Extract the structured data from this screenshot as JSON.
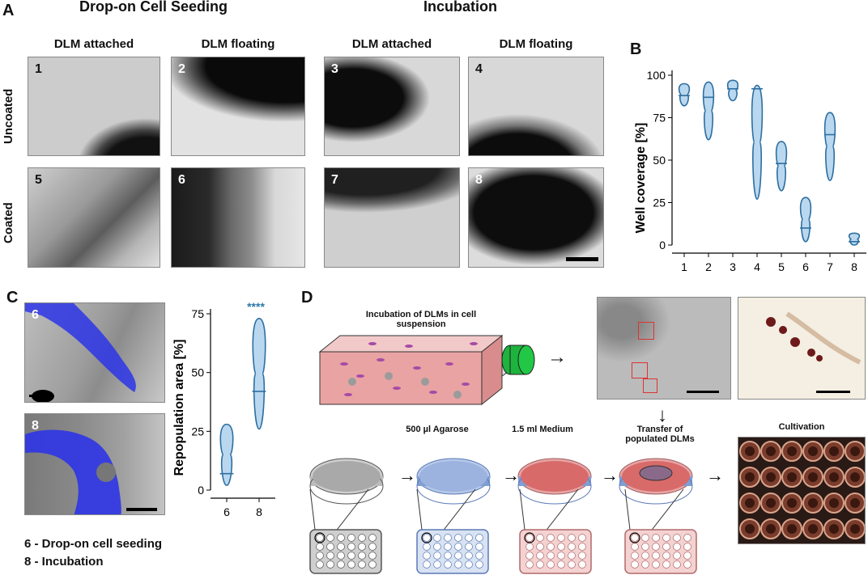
{
  "panelA": {
    "label": "A",
    "header_left": "Drop-on Cell Seeding",
    "header_right": "Incubation",
    "col_titles": [
      "DLM attached",
      "DLM floating",
      "DLM attached",
      "DLM floating"
    ],
    "row_labels": [
      "Uncoated",
      "Coated"
    ],
    "image_numbers": [
      "1",
      "2",
      "3",
      "4",
      "5",
      "6",
      "7",
      "8"
    ]
  },
  "panelB": {
    "label": "B"
  },
  "panelC": {
    "label": "C",
    "image_numbers": [
      "6",
      "8"
    ],
    "significance": "****",
    "legend": [
      "6 - Drop-on cell seeding",
      "8 - Incubation"
    ]
  },
  "panelD": {
    "label": "D",
    "flask_caption": "Incubation of DLMs in cell suspension",
    "steps": [
      "500 µl Agarose",
      "1.5 ml Medium",
      "Transfer of populated DLMs"
    ],
    "cultivation": "Cultivation"
  },
  "chart_data": [
    {
      "type": "violin",
      "ylabel": "Well coverage [%]",
      "categories": [
        "1",
        "2",
        "3",
        "4",
        "5",
        "6",
        "7",
        "8"
      ],
      "yticks": [
        0,
        25,
        50,
        75,
        100
      ],
      "ylim": [
        0,
        100
      ],
      "violins": [
        {
          "cat": "1",
          "min": 82,
          "max": 95,
          "median": 88
        },
        {
          "cat": "2",
          "min": 62,
          "max": 96,
          "median": 87
        },
        {
          "cat": "3",
          "min": 85,
          "max": 97,
          "median": 92
        },
        {
          "cat": "4",
          "min": 27,
          "max": 94,
          "median": 92
        },
        {
          "cat": "5",
          "min": 32,
          "max": 61,
          "median": 48
        },
        {
          "cat": "6",
          "min": 2,
          "max": 28,
          "median": 10
        },
        {
          "cat": "7",
          "min": 38,
          "max": 78,
          "median": 65
        },
        {
          "cat": "8",
          "min": 0,
          "max": 7,
          "median": 2
        }
      ]
    },
    {
      "type": "violin",
      "ylabel": "Repopulation area [%]",
      "categories": [
        "6",
        "8"
      ],
      "yticks": [
        0,
        25,
        50,
        75
      ],
      "ylim": [
        0,
        75
      ],
      "violins": [
        {
          "cat": "6",
          "min": 2,
          "max": 28,
          "median": 7
        },
        {
          "cat": "8",
          "min": 26,
          "max": 73,
          "median": 42
        }
      ]
    }
  ]
}
